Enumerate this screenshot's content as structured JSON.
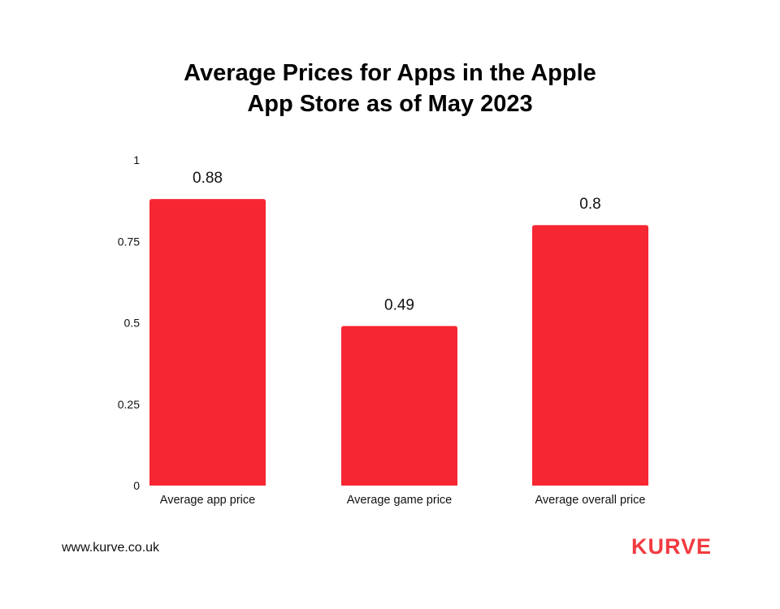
{
  "chart_data": {
    "type": "bar",
    "title_lines": [
      "Average Prices for Apps in the Apple",
      "App Store as of May 2023"
    ],
    "categories": [
      "Average app price",
      "Average game price",
      "Average overall price"
    ],
    "values": [
      0.88,
      0.49,
      0.8
    ],
    "data_labels": [
      "0.88",
      "0.49",
      "0.8"
    ],
    "yticks": [
      0,
      0.25,
      0.5,
      0.75,
      1
    ],
    "ytick_labels": [
      "0",
      "0.25",
      "0.5",
      "0.75",
      "1"
    ],
    "ylim": [
      0,
      1
    ],
    "xlabel": "",
    "ylabel": "",
    "grid": false,
    "bar_color": "#f62632"
  },
  "footer": {
    "url": "www.kurve.co.uk",
    "logo": "KURVE"
  }
}
